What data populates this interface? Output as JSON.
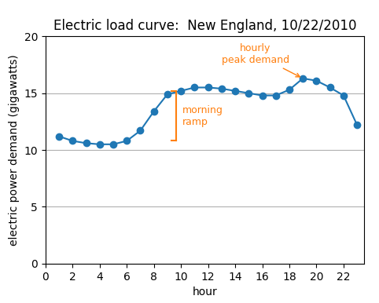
{
  "chart_data": {
    "type": "line",
    "title": "Electric load curve:  New England, 10/22/2010",
    "x_label": "hour",
    "y_label": "electric power demand (gigawatts)",
    "x": [
      1,
      2,
      3,
      4,
      5,
      6,
      7,
      8,
      9,
      10,
      11,
      12,
      13,
      14,
      15,
      16,
      17,
      18,
      19,
      20,
      21,
      22,
      23
    ],
    "values": [
      11.2,
      10.8,
      10.6,
      10.5,
      10.5,
      10.8,
      11.7,
      13.4,
      14.9,
      15.2,
      15.5,
      15.5,
      15.4,
      15.2,
      15.0,
      14.8,
      14.8,
      15.3,
      16.3,
      16.1,
      15.5,
      14.8,
      12.2
    ],
    "xlim": [
      0,
      23.5
    ],
    "xticks": [
      0,
      2,
      4,
      6,
      8,
      10,
      12,
      14,
      16,
      18,
      20,
      22
    ],
    "ylim": [
      0,
      20
    ],
    "yticks": [
      0,
      5,
      10,
      15,
      20
    ],
    "grid": "y",
    "marker": "o",
    "annotations": [
      {
        "text": "morning\nramp",
        "y_from": 10.8,
        "y_to": 15.2
      },
      {
        "text": "hourly\npeak demand",
        "x": 19,
        "y": 16.3
      }
    ]
  }
}
